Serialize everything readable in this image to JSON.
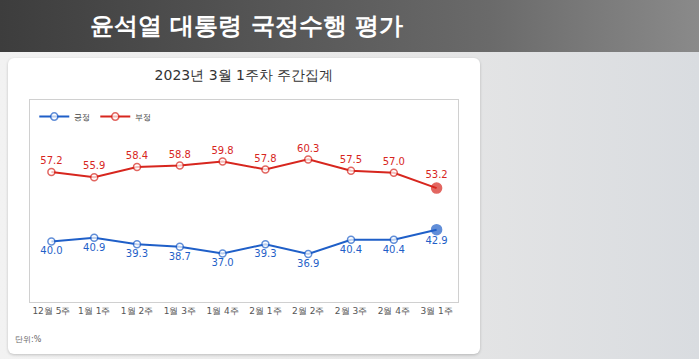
{
  "header": {
    "title": "윤석열 대통령 국정수행 평가"
  },
  "chart_data": {
    "type": "line",
    "title": "2023년 3월 1주차 주간집계",
    "categories": [
      "12월 5주",
      "1월 1주",
      "1월 2주",
      "1월 3주",
      "1월 4주",
      "2월 1주",
      "2월 2주",
      "2월 3주",
      "2월 4주",
      "3월 1주"
    ],
    "series": [
      {
        "name": "긍정",
        "color": "#1f5fc8",
        "values": [
          40.0,
          40.9,
          39.3,
          38.7,
          37.0,
          39.3,
          36.9,
          40.4,
          40.4,
          42.9
        ],
        "value_labels": [
          "40.0",
          "40.9",
          "39.3",
          "38.7",
          "37.0",
          "39.3",
          "36.9",
          "40.4",
          "40.4",
          "42.9"
        ]
      },
      {
        "name": "부정",
        "color": "#d7261e",
        "values": [
          57.2,
          55.9,
          58.4,
          58.8,
          59.8,
          57.8,
          60.3,
          57.5,
          57.0,
          53.2
        ],
        "value_labels": [
          "57.2",
          "55.9",
          "58.4",
          "58.8",
          "59.8",
          "57.8",
          "60.3",
          "57.5",
          "57.0",
          "53.2"
        ]
      }
    ],
    "ylim": [
      25,
      75
    ],
    "tick_labels": "x",
    "data_labels": true,
    "legend": "top left",
    "grid": false,
    "marker": "circle",
    "annotations": [
      "단위:%"
    ]
  }
}
